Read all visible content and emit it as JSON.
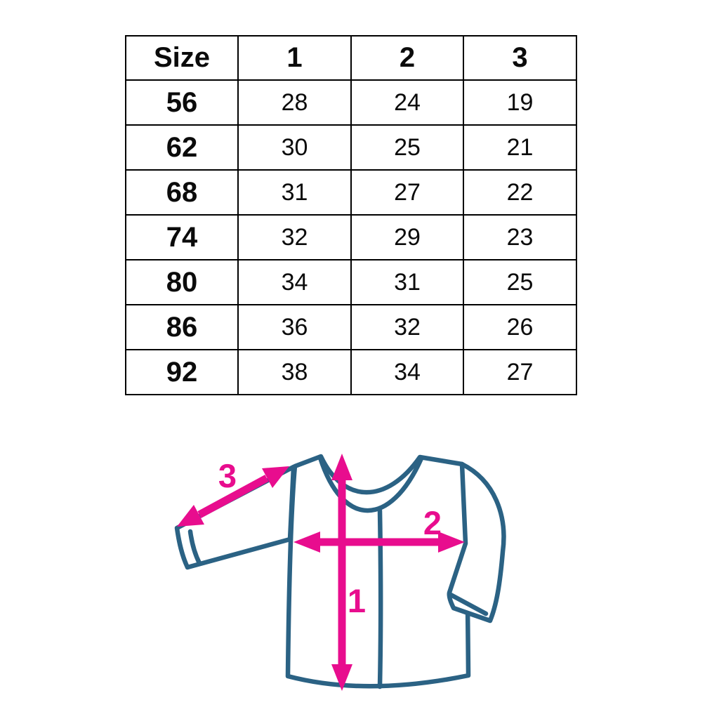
{
  "size_table": {
    "header": [
      "Size",
      "1",
      "2",
      "3"
    ],
    "rows": [
      {
        "size": "56",
        "values": [
          "28",
          "24",
          "19"
        ]
      },
      {
        "size": "62",
        "values": [
          "30",
          "25",
          "21"
        ]
      },
      {
        "size": "68",
        "values": [
          "31",
          "27",
          "22"
        ]
      },
      {
        "size": "74",
        "values": [
          "32",
          "29",
          "23"
        ]
      },
      {
        "size": "80",
        "values": [
          "34",
          "31",
          "25"
        ]
      },
      {
        "size": "86",
        "values": [
          "36",
          "32",
          "26"
        ]
      },
      {
        "size": "92",
        "values": [
          "38",
          "34",
          "27"
        ]
      }
    ]
  },
  "diagram": {
    "measure_labels": {
      "body_length": "1",
      "chest_width": "2",
      "sleeve_length": "3"
    },
    "colors": {
      "shirt_outline": "#2b6284",
      "arrow": "#e80d8e"
    }
  }
}
